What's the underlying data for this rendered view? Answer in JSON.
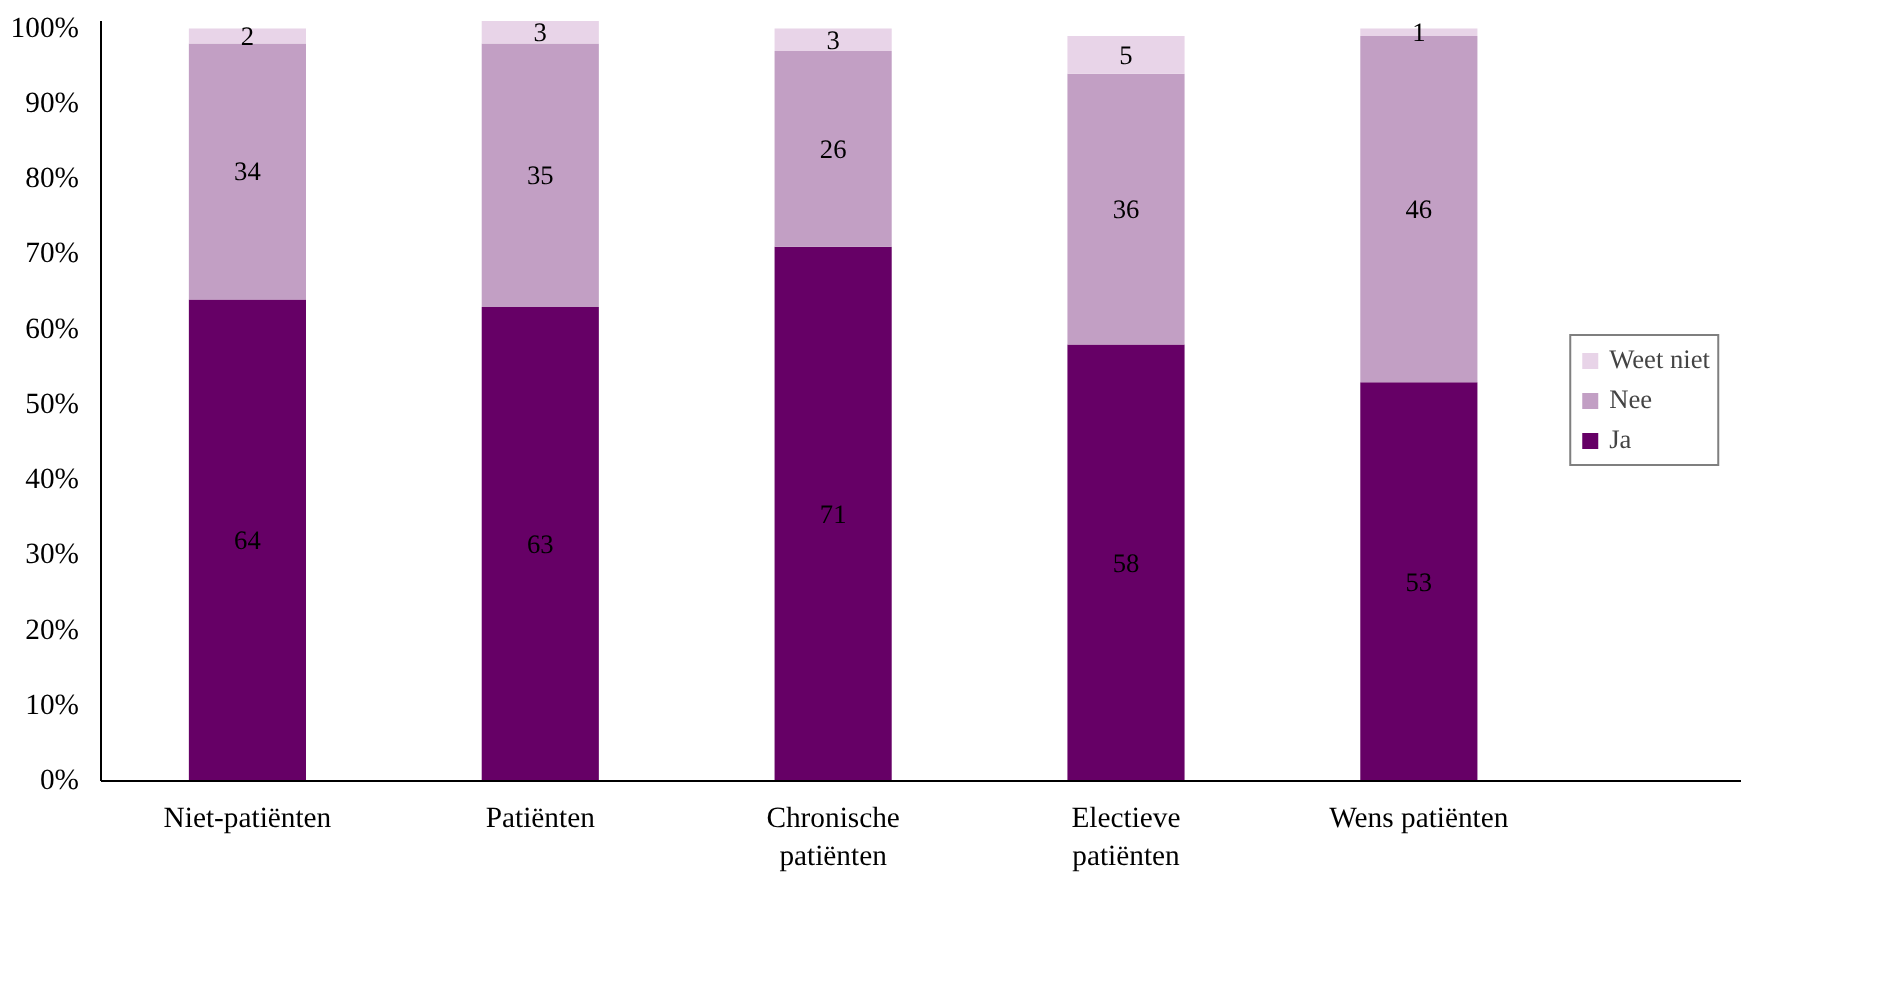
{
  "chart_data": {
    "type": "bar",
    "stacked": true,
    "categories": [
      "Niet-patiënten",
      "Patiënten",
      "Chronische\npatiënten",
      "Electieve\npatiënten",
      "Wens patiënten"
    ],
    "series": [
      {
        "name": "Ja",
        "color": "#660066",
        "values": [
          64,
          63,
          71,
          58,
          53
        ]
      },
      {
        "name": "Nee",
        "color": "#c29fc4",
        "values": [
          34,
          35,
          26,
          36,
          46
        ]
      },
      {
        "name": "Weet niet",
        "color": "#e8d4e8",
        "values": [
          2,
          3,
          3,
          5,
          1
        ]
      }
    ],
    "ylim": [
      0,
      101
    ],
    "yticks": [
      {
        "value": 0,
        "label": "0%"
      },
      {
        "value": 10,
        "label": "10%"
      },
      {
        "value": 20,
        "label": "20%"
      },
      {
        "value": 30,
        "label": "30%"
      },
      {
        "value": 40,
        "label": "40%"
      },
      {
        "value": 50,
        "label": "50%"
      },
      {
        "value": 60,
        "label": "60%"
      },
      {
        "value": 70,
        "label": "70%"
      },
      {
        "value": 80,
        "label": "80%"
      },
      {
        "value": 90,
        "label": "90%"
      },
      {
        "value": 100,
        "label": "100%"
      }
    ],
    "data_labels": true,
    "grid": false,
    "legend": "right"
  }
}
